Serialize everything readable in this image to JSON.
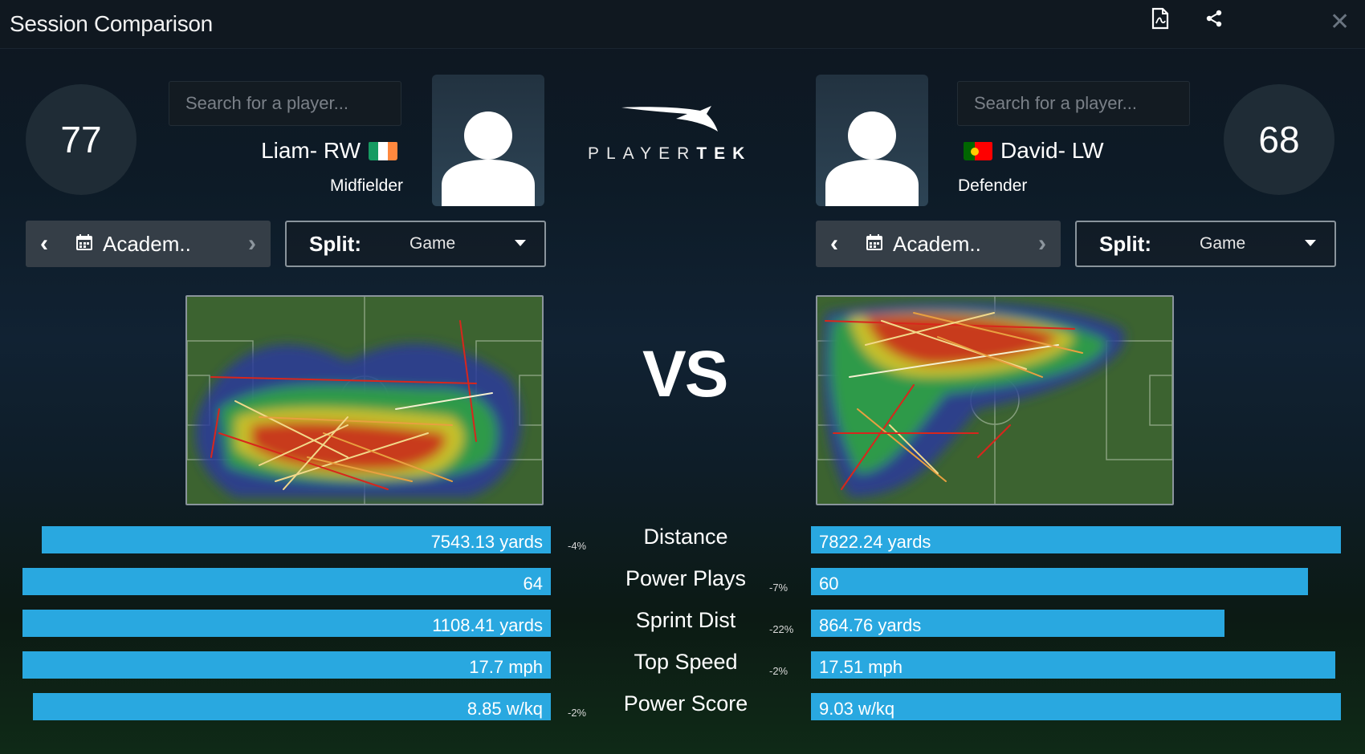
{
  "window": {
    "title": "Session Comparison"
  },
  "left_player": {
    "rating": "77",
    "search_placeholder": "Search for a player...",
    "name": "Liam- RW",
    "position": "Midfielder",
    "session_label": "Academ..",
    "split_key": "Split:",
    "split_value": "Game"
  },
  "right_player": {
    "rating": "68",
    "search_placeholder": "Search for a player...",
    "name": "David- LW",
    "position": "Defender",
    "session_label": "Academ..",
    "split_key": "Split:",
    "split_value": "Game"
  },
  "logo": {
    "text_light": "PLAYER",
    "text_bold": "TEK"
  },
  "vs_text": "VS",
  "stats": [
    {
      "metric": "Distance",
      "left": "7543.13 yards",
      "right": "7822.24 yards",
      "delta": "-4%",
      "delta_side": "left",
      "left_fraction": 0.964,
      "right_fraction": 1.0
    },
    {
      "metric": "Power Plays",
      "left": "64",
      "right": "60",
      "delta": "-7%",
      "delta_side": "right",
      "left_fraction": 1.0,
      "right_fraction": 0.9375
    },
    {
      "metric": "Sprint Dist",
      "left": "1108.41 yards",
      "right": "864.76 yards",
      "delta": "-22%",
      "delta_side": "right",
      "left_fraction": 1.0,
      "right_fraction": 0.78
    },
    {
      "metric": "Top Speed",
      "left": "17.7 mph",
      "right": "17.51 mph",
      "delta": "-2%",
      "delta_side": "right",
      "left_fraction": 1.0,
      "right_fraction": 0.989
    },
    {
      "metric": "Power Score",
      "left": "8.85 w/kq",
      "right": "9.03 w/kq",
      "delta": "-2%",
      "delta_side": "left",
      "left_fraction": 0.98,
      "right_fraction": 1.0
    }
  ],
  "icons": {
    "pdf": "pdf-export-icon",
    "share": "share-icon",
    "close": "close-icon",
    "calendar": "calendar-icon"
  },
  "colors": {
    "bar": "#29a8e0",
    "background": "#0e1620",
    "ireland_flag": [
      "#169b62",
      "#ffffff",
      "#ff883e"
    ],
    "portugal_flag": [
      "#006600",
      "#ff0000"
    ]
  }
}
